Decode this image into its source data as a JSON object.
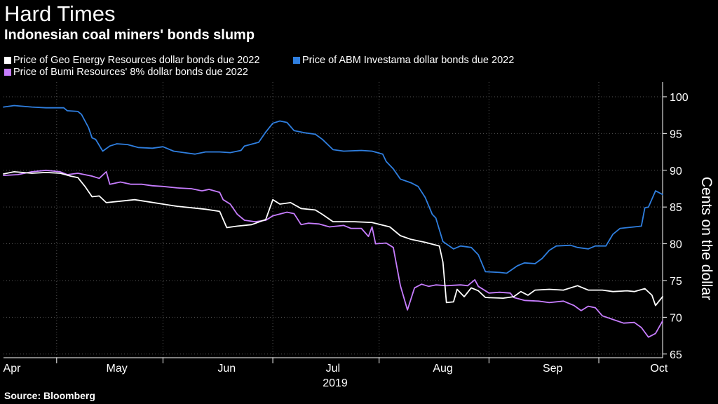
{
  "colors": {
    "background": "#000000",
    "geo": "#ffffff",
    "abm": "#2f7fe0",
    "bumi": "#c77dff",
    "grid": "#555555",
    "axis": "#ffffff"
  },
  "chart_data": {
    "type": "line",
    "title": "Hard Times",
    "subtitle": "Indonesian coal miners' bonds slump",
    "source": "Source: Bloomberg",
    "xlabel": "2019",
    "ylabel": "Cents on the dollar",
    "ylim": [
      64.5,
      102
    ],
    "yticks": [
      65,
      70,
      75,
      80,
      85,
      90,
      95,
      100
    ],
    "xlim": [
      0,
      186
    ],
    "xticks": [
      {
        "label": "Apr",
        "x": 0
      },
      {
        "label": "May",
        "x": 30
      },
      {
        "label": "Jun",
        "x": 61
      },
      {
        "label": "Jul",
        "x": 91
      },
      {
        "label": "Aug",
        "x": 122
      },
      {
        "label": "Sep",
        "x": 153
      },
      {
        "label": "Oct",
        "x": 183
      }
    ],
    "xgrid": [
      15,
      45,
      76,
      106,
      137,
      168
    ],
    "series": [
      {
        "name": "Price of Geo Energy Resources dollar bonds due 2022",
        "key": "geo",
        "points": [
          [
            0,
            89.5
          ],
          [
            3,
            89.8
          ],
          [
            8,
            89.6
          ],
          [
            12,
            89.7
          ],
          [
            16,
            89.6
          ],
          [
            19,
            89.2
          ],
          [
            21,
            89.0
          ],
          [
            23,
            87.8
          ],
          [
            25,
            86.4
          ],
          [
            27,
            86.5
          ],
          [
            29,
            85.6
          ],
          [
            33,
            85.8
          ],
          [
            37,
            86.0
          ],
          [
            41,
            85.7
          ],
          [
            45,
            85.4
          ],
          [
            49,
            85.1
          ],
          [
            53,
            84.9
          ],
          [
            57,
            84.7
          ],
          [
            61,
            84.4
          ],
          [
            63,
            82.2
          ],
          [
            66,
            82.4
          ],
          [
            70,
            82.6
          ],
          [
            74,
            83.3
          ],
          [
            76,
            86.0
          ],
          [
            78,
            85.4
          ],
          [
            81,
            85.6
          ],
          [
            84,
            84.8
          ],
          [
            88,
            84.6
          ],
          [
            90,
            84.0
          ],
          [
            93,
            83.0
          ],
          [
            99,
            83.0
          ],
          [
            104,
            82.9
          ],
          [
            109,
            82.3
          ],
          [
            112,
            81.1
          ],
          [
            115,
            80.6
          ],
          [
            119,
            80.2
          ],
          [
            123,
            79.7
          ],
          [
            124,
            77.5
          ],
          [
            125,
            72.0
          ],
          [
            127,
            72.1
          ],
          [
            128,
            73.8
          ],
          [
            130,
            72.8
          ],
          [
            132,
            74.0
          ],
          [
            134,
            73.6
          ],
          [
            136,
            72.7
          ],
          [
            141,
            72.6
          ],
          [
            144,
            72.8
          ],
          [
            146,
            73.5
          ],
          [
            148,
            73.0
          ],
          [
            150,
            73.7
          ],
          [
            154,
            73.8
          ],
          [
            158,
            73.7
          ],
          [
            162,
            74.3
          ],
          [
            165,
            73.7
          ],
          [
            169,
            73.7
          ],
          [
            172,
            73.5
          ],
          [
            176,
            73.6
          ],
          [
            178,
            73.5
          ],
          [
            181,
            73.9
          ],
          [
            183,
            73.0
          ],
          [
            184,
            71.6
          ],
          [
            186,
            72.8
          ]
        ]
      },
      {
        "name": "Price of ABM Investama dollar bonds due 2022",
        "key": "abm",
        "points": [
          [
            0,
            98.6
          ],
          [
            3,
            98.8
          ],
          [
            8,
            98.6
          ],
          [
            12,
            98.5
          ],
          [
            17,
            98.5
          ],
          [
            18,
            98.1
          ],
          [
            21,
            98.0
          ],
          [
            22,
            97.6
          ],
          [
            24,
            95.8
          ],
          [
            25,
            94.4
          ],
          [
            26,
            94.2
          ],
          [
            28,
            92.6
          ],
          [
            30,
            93.3
          ],
          [
            32,
            93.6
          ],
          [
            35,
            93.5
          ],
          [
            38,
            93.1
          ],
          [
            42,
            93.0
          ],
          [
            45,
            93.2
          ],
          [
            48,
            92.6
          ],
          [
            51,
            92.4
          ],
          [
            54,
            92.2
          ],
          [
            57,
            92.5
          ],
          [
            61,
            92.5
          ],
          [
            64,
            92.4
          ],
          [
            67,
            92.7
          ],
          [
            68,
            93.3
          ],
          [
            72,
            93.8
          ],
          [
            74,
            95.2
          ],
          [
            76,
            96.4
          ],
          [
            78,
            96.7
          ],
          [
            80,
            96.5
          ],
          [
            82,
            95.4
          ],
          [
            85,
            95.1
          ],
          [
            88,
            94.9
          ],
          [
            90,
            94.2
          ],
          [
            93,
            92.8
          ],
          [
            96,
            92.6
          ],
          [
            101,
            92.7
          ],
          [
            104,
            92.6
          ],
          [
            107,
            92.2
          ],
          [
            108,
            91.2
          ],
          [
            110,
            90.2
          ],
          [
            112,
            88.8
          ],
          [
            115,
            88.3
          ],
          [
            117,
            87.8
          ],
          [
            119,
            86.3
          ],
          [
            121,
            84.0
          ],
          [
            122,
            83.5
          ],
          [
            124,
            80.3
          ],
          [
            127,
            79.3
          ],
          [
            129,
            79.7
          ],
          [
            132,
            79.5
          ],
          [
            134,
            78.5
          ],
          [
            136,
            76.2
          ],
          [
            140,
            76.1
          ],
          [
            142,
            76.0
          ],
          [
            145,
            77.0
          ],
          [
            147,
            77.4
          ],
          [
            150,
            77.3
          ],
          [
            152,
            78.0
          ],
          [
            154,
            79.1
          ],
          [
            156,
            79.7
          ],
          [
            160,
            79.8
          ],
          [
            162,
            79.5
          ],
          [
            165,
            79.3
          ],
          [
            167,
            79.7
          ],
          [
            170,
            79.7
          ],
          [
            172,
            81.3
          ],
          [
            174,
            82.1
          ],
          [
            178,
            82.3
          ],
          [
            180,
            82.4
          ],
          [
            181,
            84.9
          ],
          [
            182,
            85.0
          ],
          [
            184,
            87.2
          ],
          [
            186,
            86.7
          ]
        ]
      },
      {
        "name": "Price of Bumi Resources' 8% dollar bonds due 2022",
        "key": "bumi",
        "points": [
          [
            0,
            89.3
          ],
          [
            4,
            89.4
          ],
          [
            8,
            89.8
          ],
          [
            12,
            90.0
          ],
          [
            16,
            89.8
          ],
          [
            18,
            89.4
          ],
          [
            21,
            89.6
          ],
          [
            25,
            89.2
          ],
          [
            27,
            88.9
          ],
          [
            29,
            89.8
          ],
          [
            30,
            88.1
          ],
          [
            33,
            88.4
          ],
          [
            36,
            88.1
          ],
          [
            39,
            88.1
          ],
          [
            42,
            87.9
          ],
          [
            45,
            87.8
          ],
          [
            49,
            87.6
          ],
          [
            53,
            87.5
          ],
          [
            56,
            87.2
          ],
          [
            58,
            87.4
          ],
          [
            61,
            87.0
          ],
          [
            62,
            86.0
          ],
          [
            64,
            85.4
          ],
          [
            66,
            84.0
          ],
          [
            68,
            83.2
          ],
          [
            71,
            83.0
          ],
          [
            74,
            83.2
          ],
          [
            76,
            83.8
          ],
          [
            80,
            84.3
          ],
          [
            82,
            84.1
          ],
          [
            84,
            82.6
          ],
          [
            86,
            82.8
          ],
          [
            89,
            82.7
          ],
          [
            92,
            82.3
          ],
          [
            96,
            82.5
          ],
          [
            98,
            82.1
          ],
          [
            101,
            82.1
          ],
          [
            103,
            81.0
          ],
          [
            104,
            82.3
          ],
          [
            105,
            80.0
          ],
          [
            108,
            80.1
          ],
          [
            110,
            79.5
          ],
          [
            112,
            74.3
          ],
          [
            114,
            71.0
          ],
          [
            116,
            74.0
          ],
          [
            118,
            74.5
          ],
          [
            120,
            74.2
          ],
          [
            122,
            74.4
          ],
          [
            125,
            74.3
          ],
          [
            129,
            74.4
          ],
          [
            131,
            74.3
          ],
          [
            133,
            75.1
          ],
          [
            134,
            74.2
          ],
          [
            137,
            73.3
          ],
          [
            140,
            73.4
          ],
          [
            143,
            73.3
          ],
          [
            144,
            72.7
          ],
          [
            147,
            72.3
          ],
          [
            151,
            72.2
          ],
          [
            154,
            72.0
          ],
          [
            158,
            72.2
          ],
          [
            161,
            71.6
          ],
          [
            163,
            70.9
          ],
          [
            165,
            71.5
          ],
          [
            167,
            71.3
          ],
          [
            169,
            70.2
          ],
          [
            172,
            69.7
          ],
          [
            175,
            69.2
          ],
          [
            178,
            69.3
          ],
          [
            180,
            68.6
          ],
          [
            182,
            67.3
          ],
          [
            184,
            67.8
          ],
          [
            186,
            69.5
          ]
        ]
      }
    ]
  }
}
